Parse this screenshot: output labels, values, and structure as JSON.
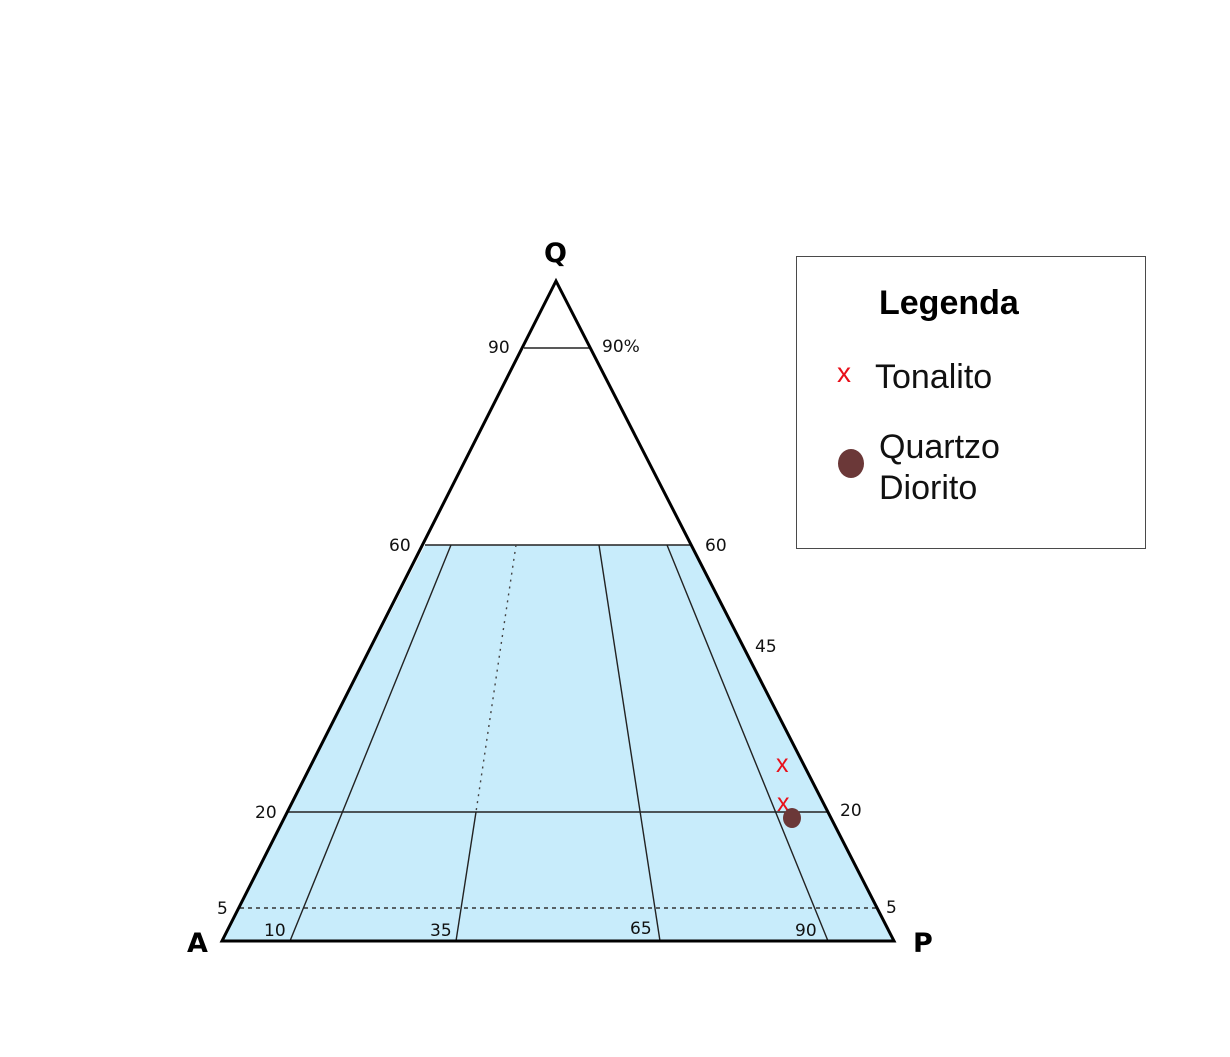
{
  "diagram": {
    "vertices": {
      "top": "Q",
      "left": "A",
      "right": "P"
    },
    "left_edge_labels": [
      "90",
      "60",
      "20",
      "5"
    ],
    "right_edge_labels": [
      "90%",
      "60",
      "45",
      "20",
      "5"
    ],
    "base_labels": [
      "10",
      "35",
      "65",
      "90"
    ],
    "colors": {
      "fill": "#c8ecfb",
      "outline": "#000000",
      "marker_x": "#e8101a",
      "marker_dot": "#6b3838"
    }
  },
  "markers": {
    "tonalito_symbol": "x",
    "tonalito_points": [
      {
        "Q": 24,
        "P_ratio": 95
      },
      {
        "Q": 21,
        "P_ratio": 95
      }
    ],
    "quartzo_diorito_points": [
      {
        "Q": 19,
        "P_ratio": 95
      }
    ]
  },
  "legend": {
    "title": "Legenda",
    "item1_symbol": "x",
    "item1_label": "Tonalito",
    "item2_label_line1": "Quartzo",
    "item2_label_line2": "Diorito"
  }
}
